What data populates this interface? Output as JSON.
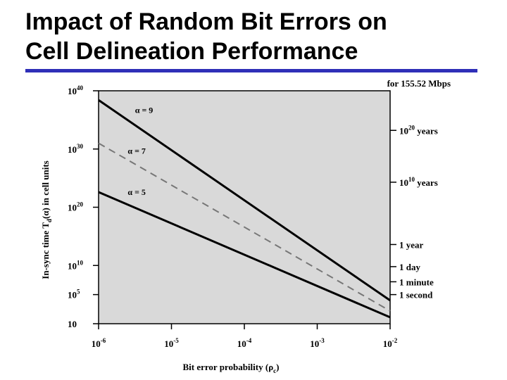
{
  "slide": {
    "title_line1": "Impact of Random Bit Errors on",
    "title_line2": "Cell Delineation Performance",
    "rule_color": "#2f2fb8"
  },
  "chart_data": {
    "type": "line",
    "subtitle": "for 155.52 Mbps",
    "xlabel": {
      "text": "Bit error probability (",
      "greek": "ρ",
      "sub": "c",
      "close": ")"
    },
    "ylabel": {
      "text": "In-sync time T",
      "sub": "d",
      "mid": "(",
      "greek": "α",
      "close": ") in cell units"
    },
    "x_scale": "log",
    "y_scale": "log",
    "xlim": [
      -6,
      -2
    ],
    "ylim": [
      0,
      40
    ],
    "x_ticks": [
      {
        "exp": -6,
        "base": "10",
        "sup": "-6"
      },
      {
        "exp": -5,
        "base": "10",
        "sup": "-5"
      },
      {
        "exp": -4,
        "base": "10",
        "sup": "-4"
      },
      {
        "exp": -3,
        "base": "10",
        "sup": "-3"
      },
      {
        "exp": -2,
        "base": "10",
        "sup": "-2"
      }
    ],
    "y_ticks": [
      {
        "exp": 40,
        "base": "10",
        "sup": "40"
      },
      {
        "exp": 30,
        "base": "10",
        "sup": "30"
      },
      {
        "exp": 20,
        "base": "10",
        "sup": "20"
      },
      {
        "exp": 10,
        "base": "10",
        "sup": "10"
      },
      {
        "exp": 5,
        "base": "10",
        "sup": "5"
      },
      {
        "exp": 0,
        "base": "10",
        "sup": ""
      }
    ],
    "right_ticks": [
      {
        "exp": 33.2,
        "base": "10",
        "sup": "20",
        "rest": " years"
      },
      {
        "exp": 24.3,
        "base": "10",
        "sup": "10",
        "rest": " years"
      },
      {
        "exp": 13.6,
        "base": "",
        "sup": "",
        "rest": "1 year"
      },
      {
        "exp": 9.8,
        "base": "",
        "sup": "",
        "rest": "1 day"
      },
      {
        "exp": 7.2,
        "base": "",
        "sup": "",
        "rest": "1 minute"
      },
      {
        "exp": 5.0,
        "base": "",
        "sup": "",
        "rest": "1 second"
      }
    ],
    "series": [
      {
        "name": "α = 9",
        "dashed": false,
        "color": "#000000",
        "x": [
          -6,
          -2
        ],
        "y": [
          38.4,
          4.0
        ],
        "label_x": -5.5,
        "label_y": 36.2
      },
      {
        "name": "α = 7",
        "dashed": true,
        "color": "#777777",
        "x": [
          -6,
          -2
        ],
        "y": [
          31.0,
          2.2
        ],
        "label_x": -5.6,
        "label_y": 29.2
      },
      {
        "name": "α = 5",
        "dashed": false,
        "color": "#000000",
        "x": [
          -6,
          -2
        ],
        "y": [
          22.6,
          1.1
        ],
        "label_x": -5.6,
        "label_y": 22.1
      }
    ],
    "grid": false,
    "background": "#d9d9d9"
  }
}
